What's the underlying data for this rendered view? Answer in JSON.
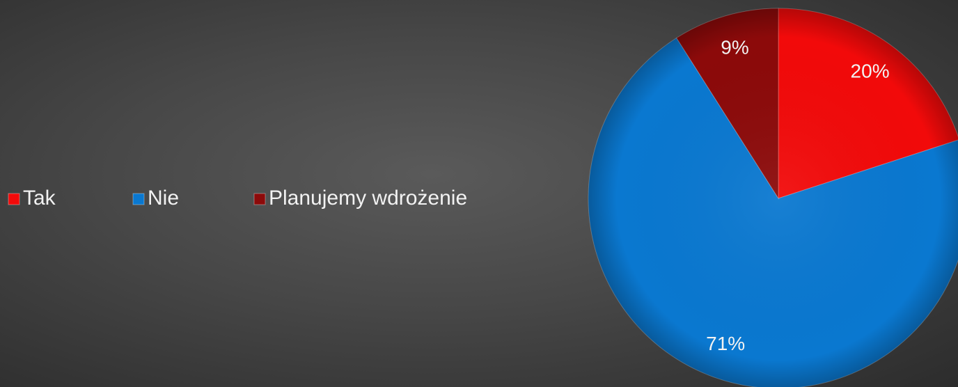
{
  "chart_data": {
    "type": "pie",
    "categories": [
      "Tak",
      "Nie",
      "Planujemy wdrożenie"
    ],
    "values": [
      20,
      71,
      9
    ],
    "value_labels": [
      "20%",
      "71%",
      "9%"
    ],
    "colors": [
      "#f20a0a",
      "#0a78d0",
      "#8c0a0a"
    ],
    "legend": "left"
  }
}
